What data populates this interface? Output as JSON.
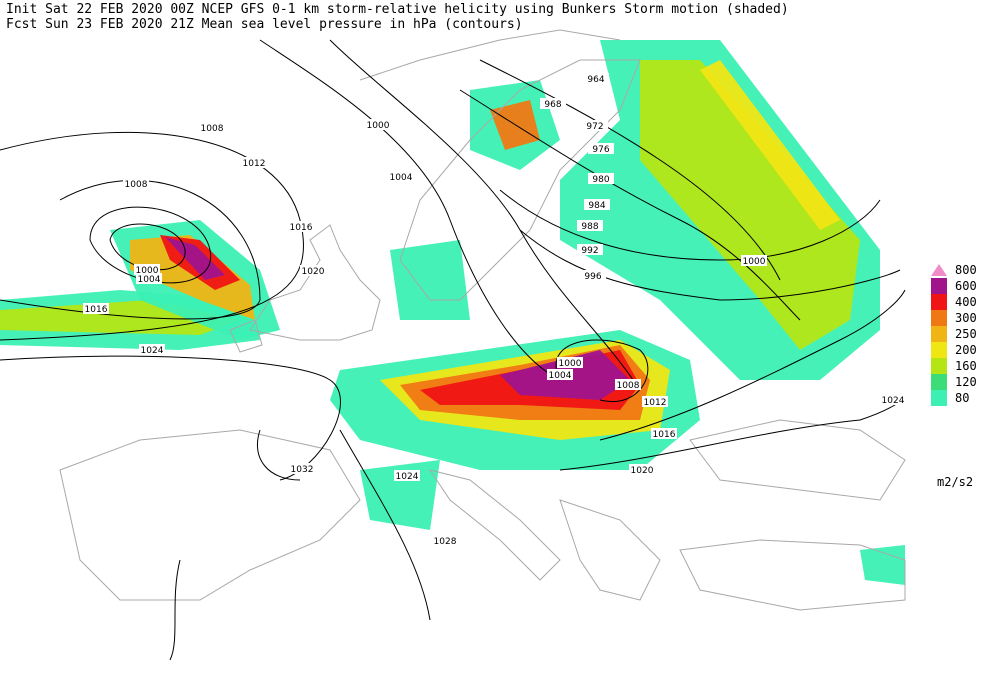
{
  "header": {
    "line1": "Init  Sat 22 FEB 2020 00Z  NCEP GFS 0-1 km storm-relative helicity using Bunkers Storm motion (shaded)",
    "line2": "Fcst Sun 23 FEB 2020 21Z  Mean sea level pressure in hPa (contours)"
  },
  "legend": {
    "levels": [
      800,
      600,
      400,
      300,
      250,
      200,
      160,
      120,
      80
    ],
    "colors": [
      "#f08cc8",
      "#a0148c",
      "#f01414",
      "#f07814",
      "#f0b414",
      "#f0e614",
      "#b4e614",
      "#3cdc78",
      "#3cf0b4"
    ],
    "unit": "m2/s2"
  },
  "isobar_labels": [
    964,
    968,
    972,
    976,
    980,
    984,
    988,
    992,
    996,
    1000,
    1004,
    1008,
    1012,
    1008,
    1016,
    1020,
    1000,
    1004,
    1016,
    1024,
    1000,
    1000,
    1004,
    1008,
    1012,
    1016,
    1020,
    1024,
    1032,
    1024,
    1028
  ]
}
